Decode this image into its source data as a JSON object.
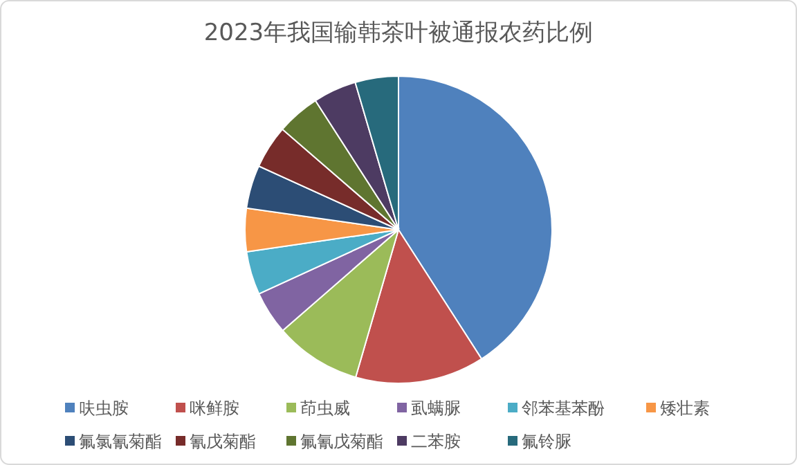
{
  "chart_data": {
    "type": "pie",
    "title": "2023年我国输韩茶叶被通报农药比例",
    "categories": [
      "呋虫胺",
      "咪鲜胺",
      "茚虫威",
      "虱螨脲",
      "邻苯基苯酚",
      "矮壮素",
      "氟氯氰菊酯",
      "氰戊菊酯",
      "氟氰戊菊酯",
      "二苯胺",
      "氟铃脲"
    ],
    "values": [
      40.9,
      13.6,
      9.1,
      4.55,
      4.55,
      4.55,
      4.55,
      4.55,
      4.55,
      4.55,
      4.55
    ],
    "colors": [
      "#4f81bd",
      "#c0504d",
      "#9bbb59",
      "#8064a2",
      "#4bacc6",
      "#f79646",
      "#2c4d75",
      "#772c2a",
      "#5f7530",
      "#4d3b62",
      "#276a7c"
    ],
    "legend": "bottom"
  }
}
